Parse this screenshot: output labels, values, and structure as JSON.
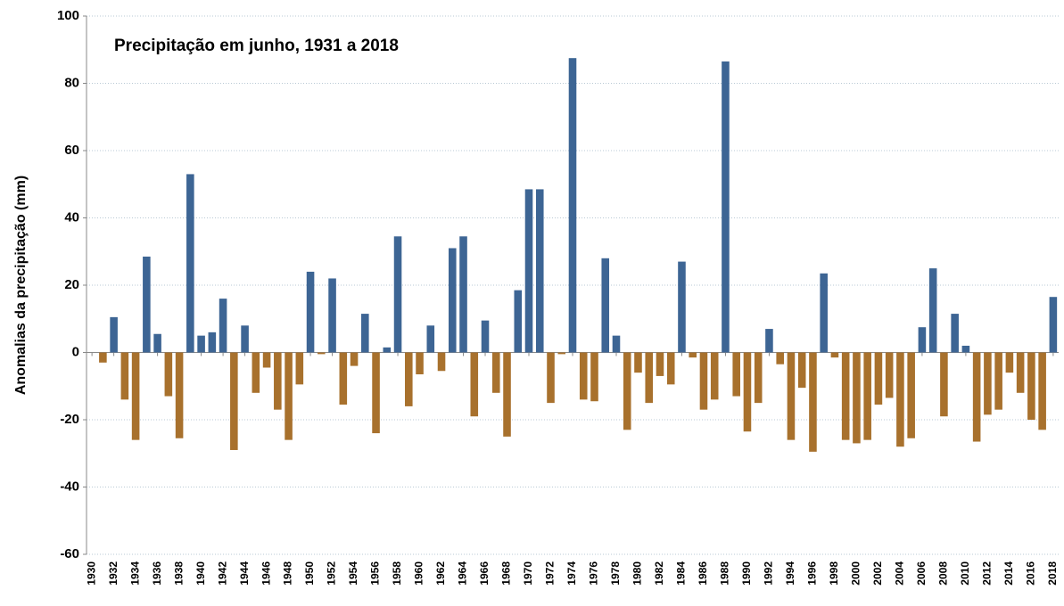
{
  "chart_data": {
    "type": "bar",
    "title": "Precipitação em junho, 1931 a 2018",
    "y_label": "Anomalias da precipitação (mm)",
    "x": [
      1931,
      1932,
      1933,
      1934,
      1935,
      1936,
      1937,
      1938,
      1939,
      1940,
      1941,
      1942,
      1943,
      1944,
      1945,
      1946,
      1947,
      1948,
      1949,
      1950,
      1951,
      1952,
      1953,
      1954,
      1955,
      1956,
      1957,
      1958,
      1959,
      1960,
      1961,
      1962,
      1963,
      1964,
      1965,
      1966,
      1967,
      1968,
      1969,
      1970,
      1971,
      1972,
      1973,
      1974,
      1975,
      1976,
      1977,
      1978,
      1979,
      1980,
      1981,
      1982,
      1983,
      1984,
      1985,
      1986,
      1987,
      1988,
      1989,
      1990,
      1991,
      1992,
      1993,
      1994,
      1995,
      1996,
      1997,
      1998,
      1999,
      2000,
      2001,
      2002,
      2003,
      2004,
      2005,
      2006,
      2007,
      2008,
      2009,
      2010,
      2011,
      2012,
      2013,
      2014,
      2015,
      2016,
      2017,
      2018
    ],
    "values": [
      -3,
      10.5,
      -14,
      -26,
      28.5,
      5.5,
      -13,
      -25.5,
      53,
      5,
      6,
      16,
      -29,
      8,
      -12,
      -4.5,
      -17,
      -26,
      -9.5,
      24,
      -0.5,
      22,
      -15.5,
      -4,
      11.5,
      -24,
      1.5,
      34.5,
      -16,
      -6.5,
      8,
      -5.5,
      31,
      34.5,
      -19,
      9.5,
      -12,
      -25,
      18.5,
      48.5,
      48.5,
      -15,
      -0.5,
      87.5,
      -14,
      -14.5,
      28,
      5,
      -23,
      -6,
      -15,
      -7,
      -9.5,
      27,
      -1.5,
      -17,
      -14,
      86.5,
      -13,
      -23.5,
      -15,
      7,
      -3.5,
      -26,
      -10.5,
      -29.5,
      23.5,
      -1.5,
      -26,
      -27,
      -26,
      -15.5,
      -13.5,
      -28,
      -25.5,
      7.5,
      25,
      -19,
      11.5,
      2,
      -26.5,
      -18.5,
      -17,
      -6,
      -12,
      -20,
      -23,
      16.5
    ],
    "positive_color": "#3d6594",
    "negative_color": "#a8712d",
    "xlim": [
      1929.5,
      2018.5
    ],
    "xticks": [
      1930,
      1932,
      1934,
      1936,
      1938,
      1940,
      1942,
      1944,
      1946,
      1948,
      1950,
      1952,
      1954,
      1956,
      1958,
      1960,
      1962,
      1964,
      1966,
      1968,
      1970,
      1972,
      1974,
      1976,
      1978,
      1980,
      1982,
      1984,
      1986,
      1988,
      1990,
      1992,
      1994,
      1996,
      1998,
      2000,
      2002,
      2004,
      2006,
      2008,
      2010,
      2012,
      2014,
      2016,
      2018
    ],
    "ylim": [
      -60,
      100
    ],
    "yticks": [
      -60,
      -40,
      -20,
      0,
      20,
      40,
      60,
      80,
      100
    ],
    "grid": true
  }
}
